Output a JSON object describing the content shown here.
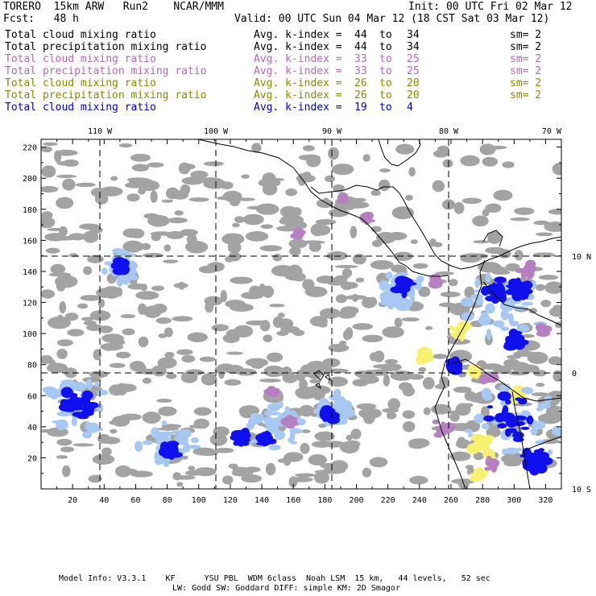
{
  "header": {
    "model": "TORERO  15km ARW   Run2    NCAR/MMM",
    "init": "Init: 00 UTC Fri 02 Mar 12",
    "fcst": "Fcst:   48 h",
    "valid": "Valid: 00 UTC Sun 04 Mar 12 (18 CST Sat 03 Mar 12)"
  },
  "legend": [
    {
      "field": "Total cloud mixing ratio",
      "index_label": "Avg. k-index =",
      "from": "44",
      "to_word": "to",
      "to": "34",
      "sm": "sm= 2",
      "color": "#000000"
    },
    {
      "field": "Total precipitation mixing ratio",
      "index_label": "Avg. k-index =",
      "from": "44",
      "to_word": "to",
      "to": "34",
      "sm": "sm= 2",
      "color": "#000000"
    },
    {
      "field": "Total cloud mixing ratio",
      "index_label": "Avg. k-index =",
      "from": "33",
      "to_word": "to",
      "to": "25",
      "sm": "sm= 2",
      "color": "#b368b3"
    },
    {
      "field": "Total precipitation mixing ratio",
      "index_label": "Avg. k-index =",
      "from": "33",
      "to_word": "to",
      "to": "25",
      "sm": "sm= 2",
      "color": "#b368b3"
    },
    {
      "field": "Total cloud mixing ratio",
      "index_label": "Avg. k-index =",
      "from": "26",
      "to_word": "to",
      "to": "20",
      "sm": "sm= 2",
      "color": "#8a8a00"
    },
    {
      "field": "Total precipitation mixing ratio",
      "index_label": "Avg. k-index =",
      "from": "26",
      "to_word": "to",
      "to": "20",
      "sm": "sm= 2",
      "color": "#8a8a00"
    },
    {
      "field": "Total cloud mixing ratio",
      "index_label": "Avg. k-index =",
      "from": "19",
      "to_word": "to",
      "to": "4",
      "sm": "",
      "color": "#0000cc"
    }
  ],
  "map": {
    "x_ticks": [
      "20",
      "40",
      "60",
      "80",
      "100",
      "120",
      "140",
      "160",
      "180",
      "200",
      "220",
      "240",
      "260",
      "280",
      "300",
      "320"
    ],
    "y_ticks": [
      "20",
      "40",
      "60",
      "80",
      "100",
      "120",
      "140",
      "160",
      "180",
      "200",
      "220"
    ],
    "lon_labels": [
      "110 W",
      "100 W",
      "90 W",
      "80 W",
      "70 W"
    ],
    "lat_labels": [
      "10 N",
      "0",
      "10 S"
    ],
    "colors": {
      "cloud_gray": "#a3a3a3",
      "k_blue": "#1010ee",
      "k_lightblue": "#a8c8f4",
      "k_purple": "#b680c0",
      "k_yellow": "#f8f070",
      "grid": "#000000"
    }
  },
  "footer": {
    "line1": "Model Info: V3.3.1    KF      YSU PBL  WDM 6class  Noah LSM  15 km,   44 levels,   52 sec",
    "line2": "LW: Godd SW: Goddard DIFF: simple KM: 2D Smagor"
  }
}
